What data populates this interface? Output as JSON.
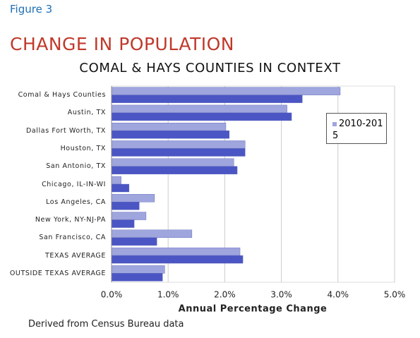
{
  "chart_data": {
    "type": "bar",
    "orientation": "horizontal",
    "figure_label": "Figure 3",
    "title": "CHANGE IN POPULATION",
    "subtitle": "COMAL & HAYS COUNTIES IN CONTEXT",
    "xlabel": "Annual Percentage Change",
    "source": "Derived from Census Bureau data",
    "categories": [
      "Comal & Hays Counties",
      "Austin, TX",
      "Dallas Fort Worth, TX",
      "Houston, TX",
      "San Antonio, TX",
      "Chicago, IL-IN-WI",
      "Los Angeles, CA",
      "New York, NY-NJ-PA",
      "San Francisco, CA",
      "TEXAS AVERAGE",
      "OUTSIDE TEXAS AVERAGE"
    ],
    "series": [
      {
        "name": "2010-2015",
        "color": "#9fa5dd",
        "values": [
          4.04,
          3.1,
          2.02,
          2.36,
          2.16,
          0.17,
          0.76,
          0.61,
          1.42,
          2.27,
          0.94
        ]
      },
      {
        "color": "#4b56c4",
        "values": [
          3.37,
          3.18,
          2.08,
          2.36,
          2.22,
          0.31,
          0.49,
          0.4,
          0.8,
          2.32,
          0.9
        ]
      }
    ],
    "xlim": [
      0,
      5
    ],
    "xticks": [
      {
        "value": 0,
        "label": "0.0%"
      },
      {
        "value": 1,
        "label": "1.0%"
      },
      {
        "value": 2,
        "label": "2.0%"
      },
      {
        "value": 3,
        "label": "3.0%"
      },
      {
        "value": 4,
        "label": "4.0%"
      },
      {
        "value": 5,
        "label": "5.0%"
      }
    ],
    "grid": true
  }
}
